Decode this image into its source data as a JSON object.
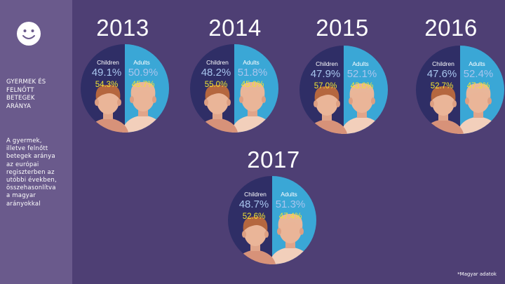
{
  "sidebar": {
    "title_lines": "GYERMEK ÉS\nFELNŐTT\nBETEGEK\nARÁNYA",
    "description": "A gyermek,\nilletve felnőtt\nbetegek aránya\naz európai\nregiszterben az\nutóbbi években,\nösszehasonlítva\na magyar\narányokkal"
  },
  "labels": {
    "children": "Children",
    "adults": "Adults"
  },
  "colors": {
    "children_fill": "#2f2e66",
    "adults_fill": "#3aa7d6",
    "hu_value_text": "#f0e233",
    "eu_value_text": "#a8c5ee"
  },
  "years": [
    {
      "year": "2013",
      "children_eu": "49.1%",
      "adults_eu": "50.9%",
      "children_hu": "54.3%",
      "adults_hu": "45.7%"
    },
    {
      "year": "2014",
      "children_eu": "48.2%",
      "adults_eu": "51.8%",
      "children_hu": "55.0%",
      "adults_hu": "45.0%"
    },
    {
      "year": "2015",
      "children_eu": "47.9%",
      "adults_eu": "52.1%",
      "children_hu": "57.0%",
      "adults_hu": "43.0%"
    },
    {
      "year": "2016",
      "children_eu": "47.6%",
      "adults_eu": "52.4%",
      "children_hu": "52.7%",
      "adults_hu": "47.3%"
    },
    {
      "year": "2017",
      "children_eu": "48.7%",
      "adults_eu": "51.3%",
      "children_hu": "52.6%",
      "adults_hu": "47.4%"
    }
  ],
  "footnote": "*Magyar adatok"
}
